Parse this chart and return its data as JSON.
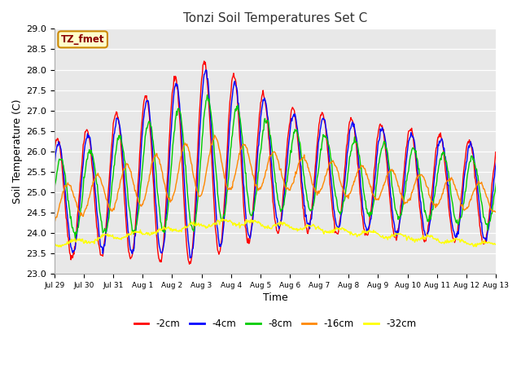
{
  "title": "Tonzi Soil Temperatures Set C",
  "xlabel": "Time",
  "ylabel": "Soil Temperature (C)",
  "ylim": [
    23.0,
    29.0
  ],
  "yticks": [
    23.0,
    23.5,
    24.0,
    24.5,
    25.0,
    25.5,
    26.0,
    26.5,
    27.0,
    27.5,
    28.0,
    28.5,
    29.0
  ],
  "series_colors": [
    "#ff0000",
    "#0000ff",
    "#00cc00",
    "#ff8800",
    "#ffff00"
  ],
  "series_labels": [
    "-2cm",
    "-4cm",
    "-8cm",
    "-16cm",
    "-32cm"
  ],
  "background_color": "#e8e8e8",
  "annotation_text": "TZ_fmet",
  "annotation_bg": "#ffffcc",
  "annotation_border": "#cc8800",
  "x_tick_labels": [
    "Jul 29",
    "Jul 30",
    "Jul 31",
    "Aug 1",
    "Aug 2",
    "Aug 3",
    "Aug 4",
    "Aug 5",
    "Aug 6",
    "Aug 7",
    "Aug 8",
    "Aug 9",
    "Aug 10",
    "Aug 11",
    "Aug 12",
    "Aug 13"
  ],
  "n_days": 16,
  "pts_per_day": 48
}
